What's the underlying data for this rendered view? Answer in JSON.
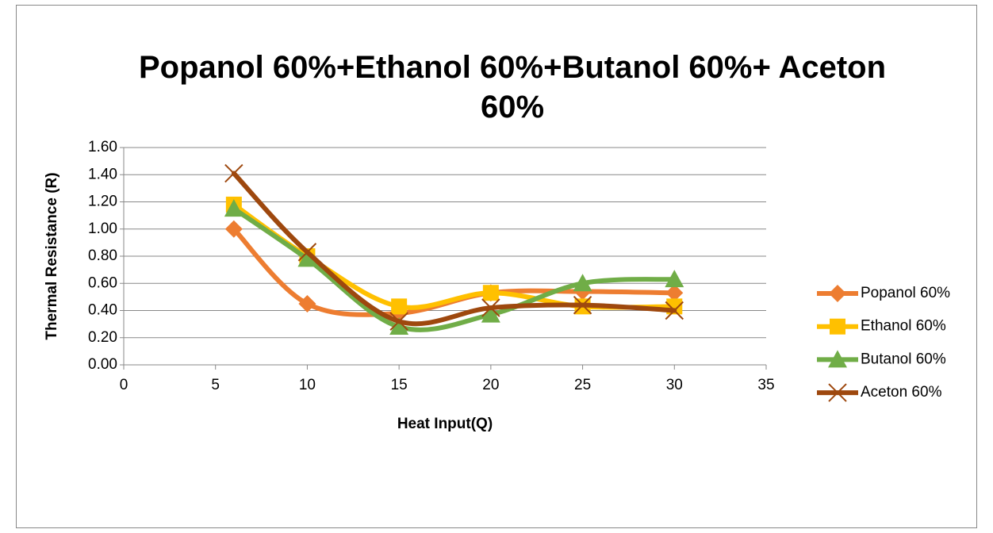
{
  "chart_data": {
    "type": "line",
    "title": "Popanol 60%+Ethanol 60%+Butanol 60%+ Aceton 60%",
    "x_label": "Heat Input(Q)",
    "y_label": "Thermal Resistance (R)",
    "x": [
      6,
      10,
      15,
      20,
      25,
      30
    ],
    "series": [
      {
        "name": "Popanol 60%",
        "color": "#ED7D31",
        "marker": "diamond",
        "values": [
          1.0,
          0.45,
          0.38,
          0.53,
          0.54,
          0.53
        ]
      },
      {
        "name": "Ethanol 60%",
        "color": "#FFC000",
        "marker": "square",
        "values": [
          1.18,
          0.8,
          0.43,
          0.53,
          0.43,
          0.43
        ]
      },
      {
        "name": "Butanol 60%",
        "color": "#70AD47",
        "marker": "triangle",
        "values": [
          1.15,
          0.78,
          0.28,
          0.37,
          0.6,
          0.63
        ]
      },
      {
        "name": "Aceton 60%",
        "color": "#9E480E",
        "marker": "x",
        "values": [
          1.41,
          0.83,
          0.32,
          0.42,
          0.44,
          0.4
        ]
      }
    ],
    "xlim": [
      0,
      35
    ],
    "xticks": [
      0,
      5,
      10,
      15,
      20,
      25,
      30,
      35
    ],
    "ylim": [
      0,
      1.6
    ],
    "yticks": [
      {
        "value": 0,
        "label": "0.00"
      },
      {
        "value": 0.2,
        "label": "0.20"
      },
      {
        "value": 0.4,
        "label": "0.40"
      },
      {
        "value": 0.6,
        "label": "0.60"
      },
      {
        "value": 0.8,
        "label": "0.80"
      },
      {
        "value": 1.0,
        "label": "1.00"
      },
      {
        "value": 1.2,
        "label": "1.20"
      },
      {
        "value": 1.4,
        "label": "1.40"
      },
      {
        "value": 1.6,
        "label": "1.60"
      }
    ],
    "grid": true,
    "legend": "right",
    "smooth": true
  }
}
